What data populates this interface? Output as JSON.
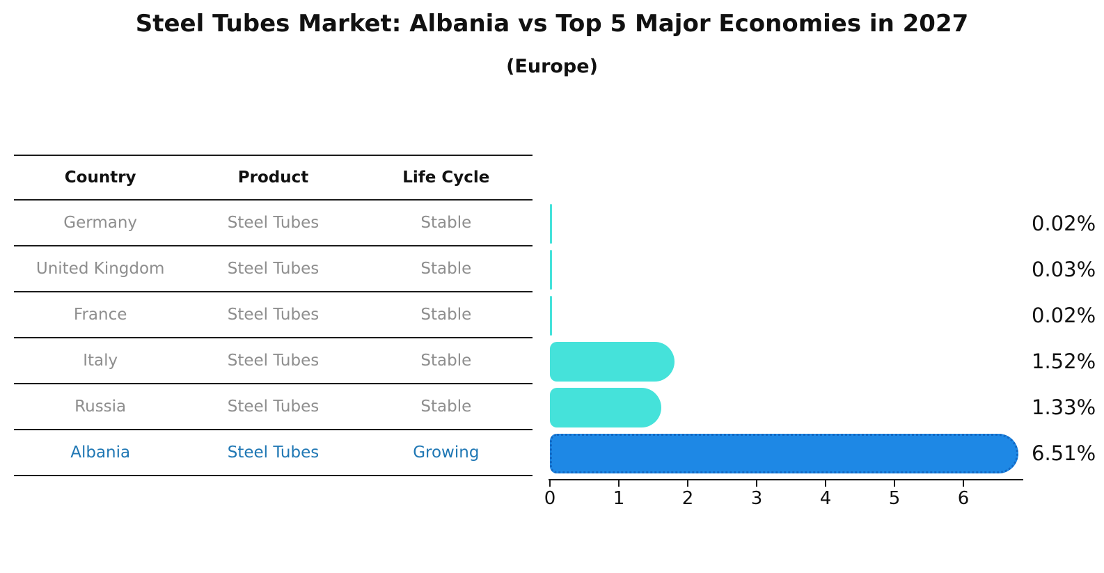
{
  "title": "Steel Tubes Market: Albania vs Top 5 Major Economies in 2027",
  "subtitle": "(Europe)",
  "table": {
    "headers": [
      "Country",
      "Product",
      "Life Cycle"
    ],
    "rows": [
      {
        "country": "Germany",
        "product": "Steel Tubes",
        "life_cycle": "Stable",
        "highlighted": false
      },
      {
        "country": "United Kingdom",
        "product": "Steel Tubes",
        "life_cycle": "Stable",
        "highlighted": false
      },
      {
        "country": "France",
        "product": "Steel Tubes",
        "life_cycle": "Stable",
        "highlighted": false
      },
      {
        "country": "Italy",
        "product": "Steel Tubes",
        "life_cycle": "Stable",
        "highlighted": false
      },
      {
        "country": "Russia",
        "product": "Steel Tubes",
        "life_cycle": "Stable",
        "highlighted": false
      },
      {
        "country": "Albania",
        "product": "Steel Tubes",
        "life_cycle": "Growing",
        "highlighted": true
      }
    ]
  },
  "chart_data": {
    "type": "bar",
    "orientation": "horizontal",
    "title": "Steel Tubes Market: Albania vs Top 5 Major Economies in 2027",
    "subtitle": "(Europe)",
    "categories": [
      "Germany",
      "United Kingdom",
      "France",
      "Italy",
      "Russia",
      "Albania"
    ],
    "values": [
      0.02,
      0.03,
      0.02,
      1.52,
      1.33,
      6.51
    ],
    "value_labels": [
      "0.02%",
      "0.03%",
      "0.02%",
      "1.52%",
      "1.33%",
      "6.51%"
    ],
    "x_ticks": [
      "0",
      "1",
      "2",
      "3",
      "4",
      "5",
      "6"
    ],
    "xlim": [
      0,
      6.85
    ],
    "grid": false,
    "legend": "none",
    "highlight_index": 5,
    "colors": {
      "bar_default": "#45E2DA",
      "bar_highlight": "#1E88E5",
      "bar_highlight_edge": "#1268C3",
      "row_text": "#8e8e8e",
      "highlight_text": "#1f77b4",
      "axis": "#1a1a1a",
      "label_text": "#111111"
    }
  }
}
